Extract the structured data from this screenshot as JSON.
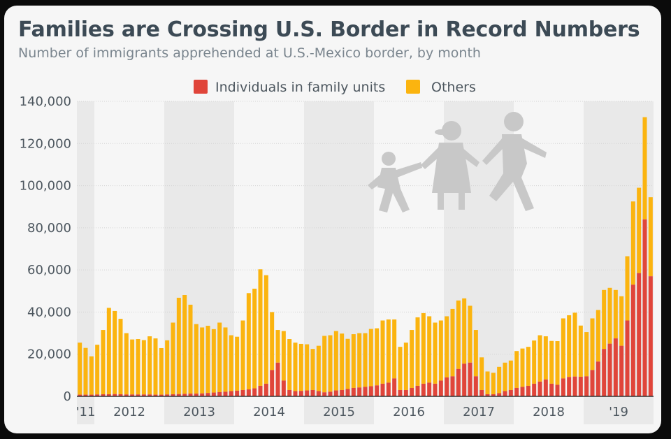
{
  "title": "Families are Crossing U.S. Border in Record Numbers",
  "subtitle": "Number of immigrants apprehended at U.S.-Mexico border, by month",
  "colors": {
    "family": "#e0453a",
    "others": "#fbb40f",
    "band": "#e9e9e9",
    "grid": "#d4d4d4",
    "icon": "#c8c8c8"
  },
  "icon": "family-walking-icon",
  "chart_data": {
    "type": "bar",
    "stacked": true,
    "ylim": [
      0,
      140000
    ],
    "yticks": [
      "0",
      "20,000",
      "40,000",
      "60,000",
      "80,000",
      "100,000",
      "120,000",
      "140,000"
    ],
    "legend": [
      "Individuals in family units",
      "Others"
    ],
    "legend_position": "top",
    "year_labels": [
      "'11",
      "2012",
      "2013",
      "2014",
      "2015",
      "2016",
      "2017",
      "2018",
      "'19"
    ],
    "series": [
      {
        "name": "Individuals in family units",
        "values": [
          800,
          800,
          800,
          900,
          1000,
          1000,
          1100,
          1000,
          900,
          900,
          900,
          900,
          900,
          800,
          800,
          900,
          1000,
          1100,
          1200,
          1300,
          1300,
          1400,
          1600,
          1800,
          2000,
          2200,
          2500,
          2700,
          3000,
          3300,
          3800,
          5000,
          6000,
          12500,
          16000,
          7500,
          3000,
          2500,
          2600,
          2800,
          3000,
          2500,
          1900,
          2200,
          2800,
          3000,
          3500,
          4000,
          4200,
          4500,
          4800,
          5200,
          6000,
          6500,
          8500,
          3000,
          3000,
          4000,
          5000,
          6000,
          6500,
          6000,
          7500,
          9000,
          9500,
          13000,
          15500,
          16000,
          9500,
          3000,
          1000,
          1000,
          1500,
          2500,
          3000,
          4000,
          4500,
          5000,
          6000,
          7000,
          8000,
          6000,
          5500,
          8500,
          9200,
          9400,
          9300,
          9500,
          12500,
          16500,
          22500,
          25000,
          27500,
          24000,
          36000,
          53000,
          58500,
          84000,
          57000
        ]
      },
      {
        "name": "Others",
        "values": [
          24700,
          22200,
          18200,
          23600,
          30500,
          41000,
          39400,
          35800,
          29100,
          26100,
          26300,
          25800,
          27600,
          26700,
          22100,
          25700,
          34000,
          45700,
          46900,
          42200,
          33000,
          31300,
          31900,
          30100,
          33000,
          30500,
          26500,
          25600,
          33000,
          45700,
          47300,
          55300,
          51500,
          27500,
          15500,
          23500,
          24200,
          23000,
          22300,
          21900,
          19500,
          21500,
          26800,
          26800,
          28200,
          26800,
          23800,
          25500,
          25800,
          25500,
          27200,
          27100,
          30000,
          30000,
          28000,
          20500,
          22500,
          27500,
          32500,
          33500,
          31500,
          29000,
          28500,
          29000,
          32000,
          32500,
          31000,
          27000,
          22000,
          15500,
          10800,
          10200,
          12500,
          13500,
          14000,
          17500,
          18200,
          18500,
          20500,
          22000,
          20500,
          20300,
          20700,
          28500,
          29300,
          30300,
          24300,
          21000,
          24500,
          24500,
          28000,
          26500,
          23000,
          23500,
          30500,
          39500,
          40500,
          48500,
          37500
        ]
      }
    ]
  }
}
